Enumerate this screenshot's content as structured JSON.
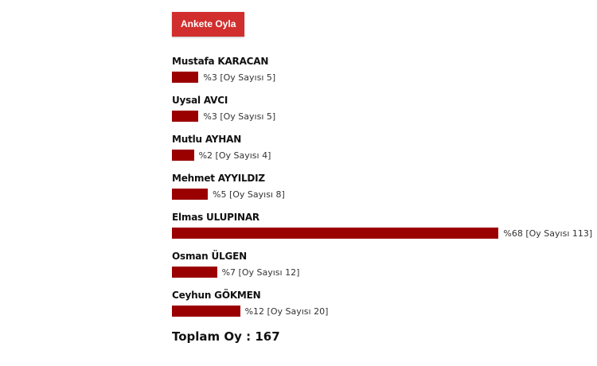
{
  "poll": {
    "vote_button": "Ankete Oyla",
    "bar_color": "#9b0000",
    "vote_count_label": "Oy Sayısı",
    "candidates": [
      {
        "name": "Mustafa KARACAN",
        "percent": 3,
        "votes": 5
      },
      {
        "name": "Uysal AVCI",
        "percent": 3,
        "votes": 5
      },
      {
        "name": "Mutlu AYHAN",
        "percent": 2,
        "votes": 4
      },
      {
        "name": "Mehmet AYYILDIZ",
        "percent": 5,
        "votes": 8
      },
      {
        "name": "Elmas ULUPINAR",
        "percent": 68,
        "votes": 113
      },
      {
        "name": "Osman ÜLGEN",
        "percent": 7,
        "votes": 12
      },
      {
        "name": "Ceyhun GÖKMEN",
        "percent": 12,
        "votes": 20
      }
    ],
    "total_label": "Toplam Oy : 167"
  }
}
